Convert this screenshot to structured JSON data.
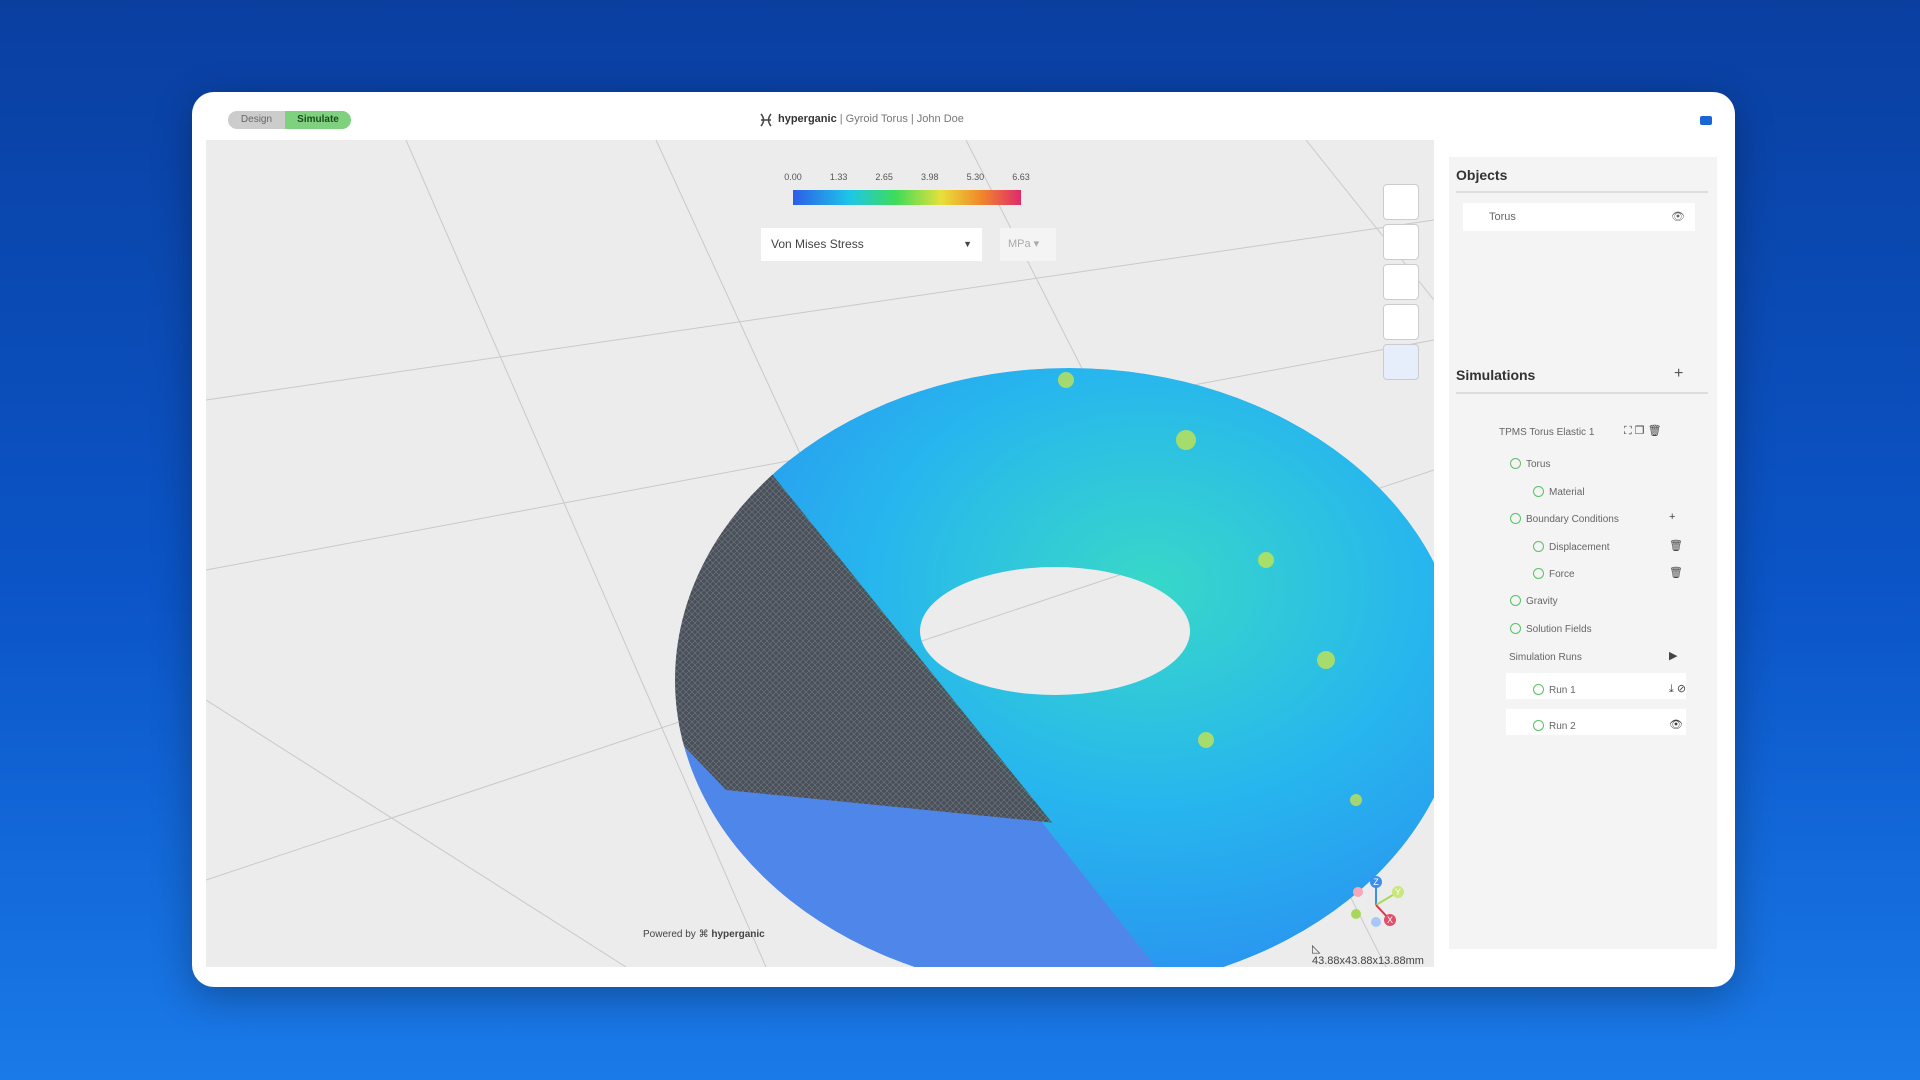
{
  "tabs": [
    "Design",
    "Simulate"
  ],
  "header": {
    "brand": "hyperganic",
    "title": "| Gyroid Torus | John Doe"
  },
  "colorbar": {
    "ticks": [
      "0.00",
      "1.33",
      "2.65",
      "3.98",
      "5.30",
      "6.63"
    ]
  },
  "field_select": "Von Mises Stress",
  "unit_select": "MPa",
  "objects": {
    "title": "Objects",
    "items": [
      "Torus"
    ]
  },
  "simulations": {
    "title": "Simulations",
    "tree": [
      "TPMS Torus Elastic 1",
      "Torus",
      "Material",
      "Boundary Conditions",
      "Displacement",
      "Force",
      "Gravity",
      "Solution Fields",
      "Simulation Runs",
      "Run 1",
      "Run 2"
    ]
  },
  "axes": [
    "Z",
    "Y",
    "X"
  ],
  "footer": {
    "powered_by": "Powered by",
    "brand": "hyperganic",
    "dimensions": "43.88x43.88x13.88mm"
  }
}
